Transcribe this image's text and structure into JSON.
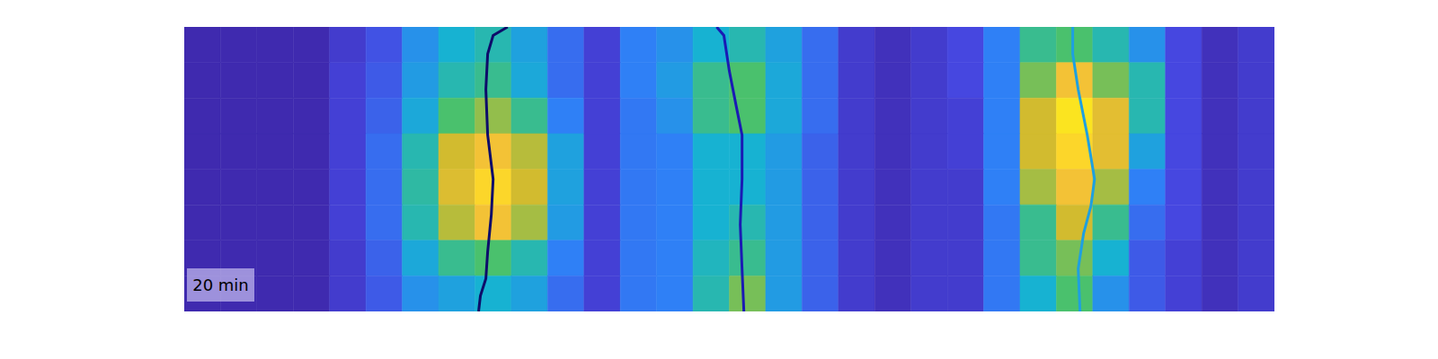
{
  "chart_data": {
    "type": "heatmap",
    "xlim": [
      0,
      60
    ],
    "ylim": [
      0,
      20
    ],
    "xticks": [],
    "yticks": [],
    "tick_labels": false,
    "grid": false,
    "zlim": [
      0,
      1
    ],
    "cells": [
      [
        0.02,
        0.02,
        0.02,
        0.02,
        0.1,
        0.18,
        0.35,
        0.45,
        0.5,
        0.4,
        0.25,
        0.12,
        0.3,
        0.35,
        0.45,
        0.5,
        0.4,
        0.25,
        0.1,
        0.05,
        0.1,
        0.15,
        0.3,
        0.55,
        0.6,
        0.5,
        0.35,
        0.15,
        0.05,
        0.1
      ],
      [
        0.02,
        0.02,
        0.02,
        0.02,
        0.12,
        0.2,
        0.38,
        0.5,
        0.55,
        0.42,
        0.25,
        0.12,
        0.3,
        0.38,
        0.55,
        0.6,
        0.42,
        0.25,
        0.1,
        0.05,
        0.1,
        0.15,
        0.3,
        0.65,
        0.85,
        0.65,
        0.5,
        0.15,
        0.05,
        0.1
      ],
      [
        0.02,
        0.02,
        0.02,
        0.02,
        0.12,
        0.22,
        0.42,
        0.6,
        0.68,
        0.55,
        0.3,
        0.12,
        0.28,
        0.35,
        0.55,
        0.6,
        0.42,
        0.25,
        0.1,
        0.05,
        0.1,
        0.12,
        0.3,
        0.75,
        0.95,
        0.8,
        0.5,
        0.15,
        0.05,
        0.1
      ],
      [
        0.02,
        0.02,
        0.02,
        0.02,
        0.12,
        0.25,
        0.5,
        0.75,
        0.85,
        0.72,
        0.4,
        0.12,
        0.28,
        0.3,
        0.45,
        0.45,
        0.38,
        0.22,
        0.1,
        0.05,
        0.1,
        0.12,
        0.3,
        0.75,
        0.92,
        0.8,
        0.4,
        0.15,
        0.05,
        0.1
      ],
      [
        0.02,
        0.02,
        0.02,
        0.02,
        0.12,
        0.25,
        0.52,
        0.78,
        0.92,
        0.75,
        0.4,
        0.12,
        0.28,
        0.3,
        0.45,
        0.45,
        0.38,
        0.22,
        0.1,
        0.05,
        0.1,
        0.1,
        0.3,
        0.7,
        0.85,
        0.7,
        0.3,
        0.15,
        0.05,
        0.1
      ],
      [
        0.02,
        0.02,
        0.02,
        0.02,
        0.12,
        0.25,
        0.5,
        0.72,
        0.85,
        0.7,
        0.38,
        0.12,
        0.28,
        0.3,
        0.45,
        0.5,
        0.38,
        0.22,
        0.1,
        0.05,
        0.1,
        0.1,
        0.28,
        0.55,
        0.75,
        0.55,
        0.25,
        0.15,
        0.05,
        0.1
      ],
      [
        0.02,
        0.02,
        0.02,
        0.02,
        0.1,
        0.22,
        0.42,
        0.55,
        0.6,
        0.5,
        0.3,
        0.12,
        0.28,
        0.3,
        0.48,
        0.55,
        0.38,
        0.22,
        0.1,
        0.05,
        0.1,
        0.1,
        0.28,
        0.55,
        0.65,
        0.45,
        0.2,
        0.12,
        0.05,
        0.1
      ],
      [
        0.02,
        0.02,
        0.02,
        0.02,
        0.1,
        0.2,
        0.35,
        0.4,
        0.45,
        0.4,
        0.25,
        0.12,
        0.28,
        0.3,
        0.5,
        0.65,
        0.38,
        0.22,
        0.1,
        0.05,
        0.1,
        0.1,
        0.28,
        0.45,
        0.6,
        0.35,
        0.2,
        0.12,
        0.05,
        0.1
      ]
    ],
    "series": [
      {
        "color": "#0d0c6a",
        "marker": "none",
        "line_style": "solid",
        "x": [
          17.8,
          17.0,
          16.7,
          16.6,
          16.7,
          17.0,
          16.9,
          16.7,
          16.6,
          16.3,
          16.2
        ],
        "y": [
          20,
          19.4,
          18.1,
          15.6,
          12.4,
          9.3,
          6.8,
          4.2,
          2.3,
          1.1,
          0
        ]
      },
      {
        "color": "#1a1ab4",
        "marker": "none",
        "line_style": "solid",
        "x": [
          29.3,
          29.7,
          30.0,
          30.4,
          30.7,
          30.7,
          30.6,
          30.7,
          30.8
        ],
        "y": [
          20,
          19.4,
          16.9,
          14.3,
          12.4,
          9.3,
          6.1,
          3.0,
          0
        ]
      },
      {
        "color": "#1ea0e0",
        "marker": "none",
        "line_style": "solid",
        "x": [
          48.9,
          48.9,
          49.2,
          49.7,
          50.1,
          49.9,
          49.5,
          49.2,
          49.3
        ],
        "y": [
          20,
          18.1,
          15.6,
          12.4,
          9.3,
          7.4,
          5.5,
          3.0,
          0
        ]
      }
    ],
    "annotations": [
      {
        "text": "20 min"
      }
    ]
  }
}
